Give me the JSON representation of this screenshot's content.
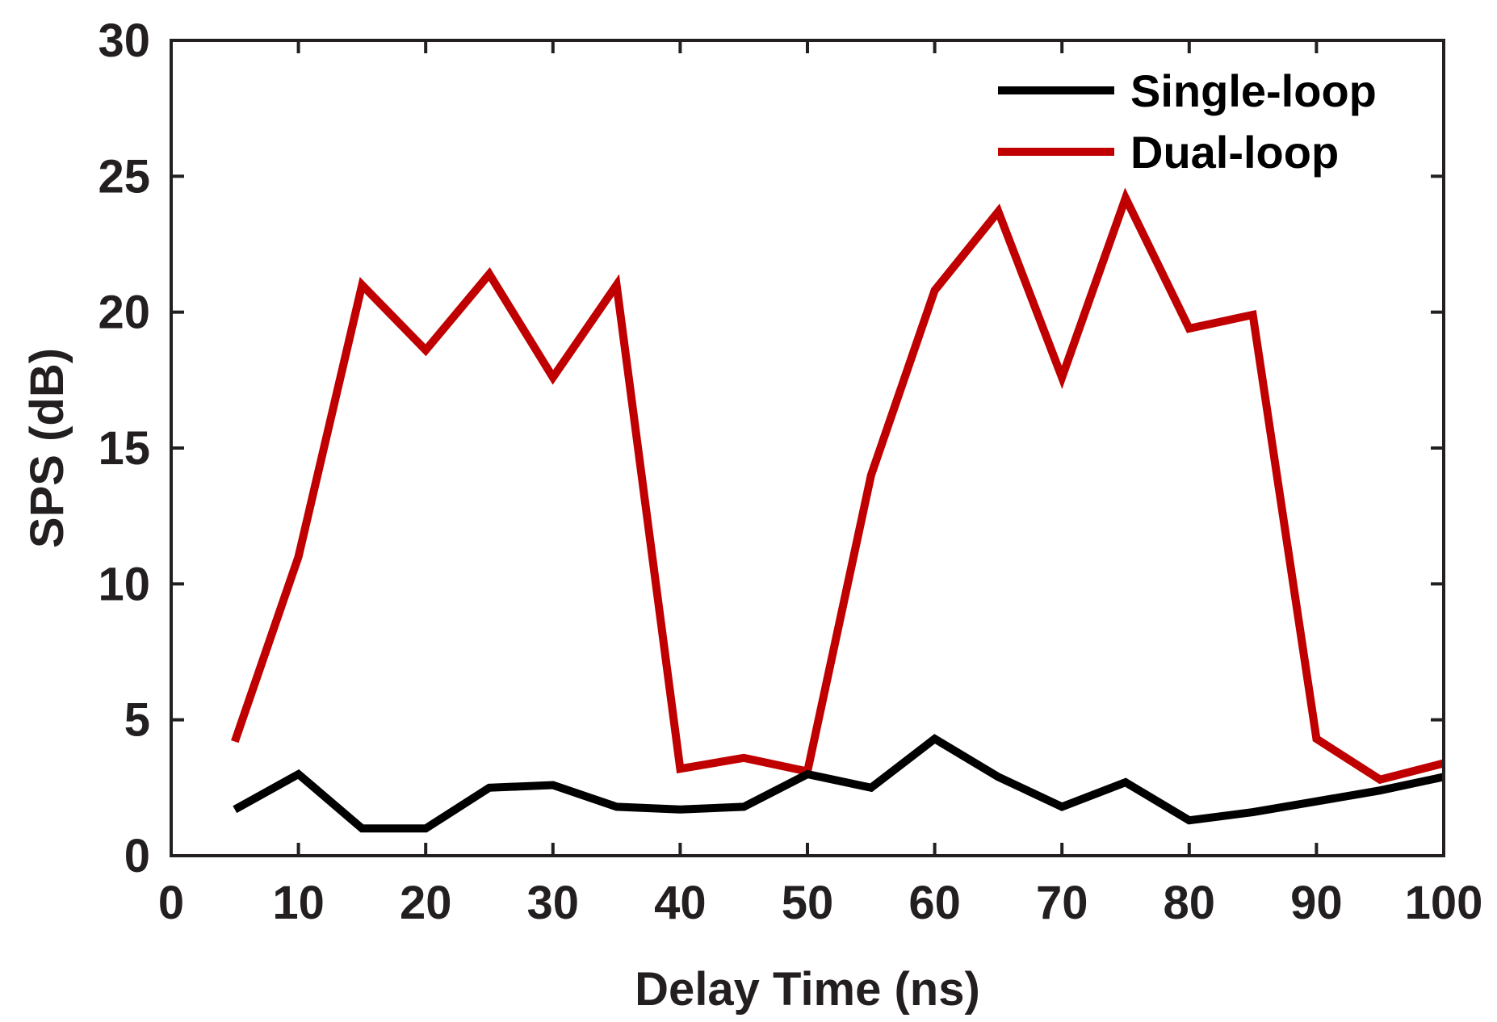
{
  "chart_data": {
    "type": "line",
    "xlabel": "Delay Time (ns)",
    "ylabel": "SPS (dB)",
    "xlim": [
      0,
      100
    ],
    "ylim": [
      0,
      30
    ],
    "x_ticks": [
      "0",
      "10",
      "20",
      "30",
      "40",
      "50",
      "60",
      "70",
      "80",
      "90",
      "100"
    ],
    "y_ticks": [
      "0",
      "5",
      "10",
      "15",
      "20",
      "25",
      "30"
    ],
    "grid": false,
    "legend_position": "top-right",
    "x": [
      5,
      10,
      15,
      20,
      25,
      30,
      35,
      40,
      45,
      50,
      55,
      60,
      65,
      70,
      75,
      80,
      85,
      90,
      95,
      100
    ],
    "series": [
      {
        "name": "Single-loop",
        "color": "#000000",
        "values": [
          1.7,
          3.0,
          1.0,
          1.0,
          2.5,
          2.6,
          1.8,
          1.7,
          1.8,
          3.0,
          2.5,
          4.3,
          2.9,
          1.8,
          2.7,
          1.3,
          1.6,
          2.0,
          2.4,
          2.9
        ]
      },
      {
        "name": "Dual-loop",
        "color": "#c00000",
        "values": [
          4.2,
          11.0,
          21.0,
          18.6,
          21.4,
          17.6,
          21.0,
          3.2,
          3.6,
          3.1,
          14.0,
          20.8,
          23.7,
          17.6,
          24.2,
          19.4,
          19.9,
          4.3,
          2.8,
          3.4
        ]
      }
    ]
  }
}
